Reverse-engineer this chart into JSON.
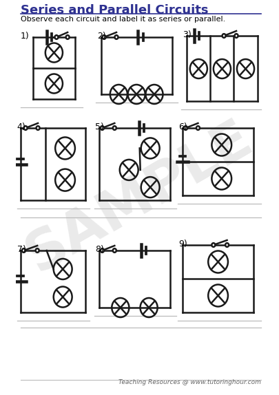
{
  "title": "Series and Parallel Circuits",
  "subtitle": "Observe each circuit and label it as series or parallel.",
  "title_color": "#2e3191",
  "footer": "Teaching Resources @ www.tutoringhour.com",
  "background": "#ffffff",
  "line_color": "#1a1a1a",
  "answer_line_color": "#bbbbbb"
}
